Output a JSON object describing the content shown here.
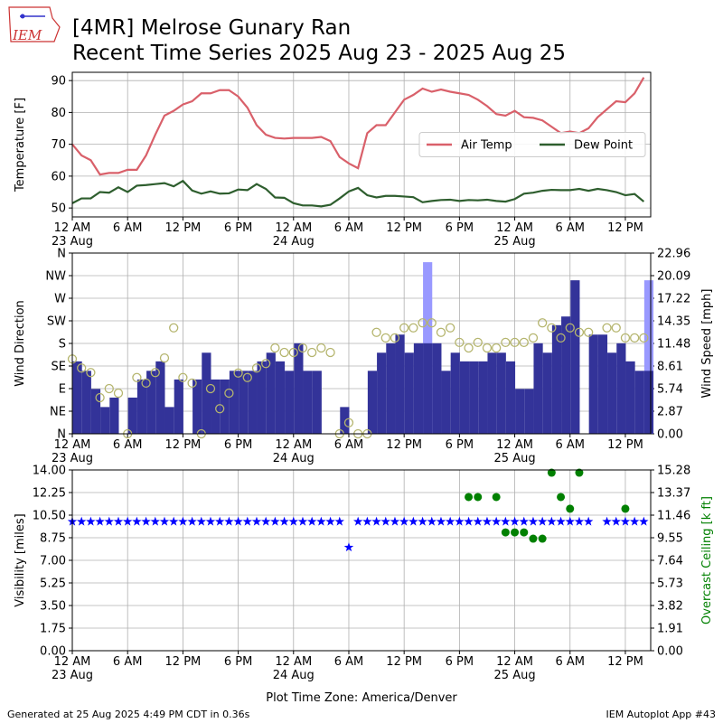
{
  "header": {
    "title": [
      "[4MR] Melrose Gunary Ran",
      "Recent Time Series 2025 Aug 23 - 2025 Aug 25"
    ],
    "logo": "IEM"
  },
  "footer": {
    "left": "Generated at 25 Aug 2025 4:49 PM CDT in 0.36s",
    "right": "IEM Autoplot App #43"
  },
  "chart_data": [
    {
      "type": "line",
      "ylabel": "Temperature [F]",
      "grid": true,
      "legend": "center right",
      "x": [
        "2025-08-23T00:00",
        "2025-08-23T01:00",
        "2025-08-23T02:00",
        "2025-08-23T03:00",
        "2025-08-23T04:00",
        "2025-08-23T05:00",
        "2025-08-23T06:00",
        "2025-08-23T07:00",
        "2025-08-23T08:00",
        "2025-08-23T09:00",
        "2025-08-23T10:00",
        "2025-08-23T11:00",
        "2025-08-23T12:00",
        "2025-08-23T13:00",
        "2025-08-23T14:00",
        "2025-08-23T15:00",
        "2025-08-23T16:00",
        "2025-08-23T17:00",
        "2025-08-23T18:00",
        "2025-08-23T19:00",
        "2025-08-23T20:00",
        "2025-08-23T21:00",
        "2025-08-23T22:00",
        "2025-08-23T23:00",
        "2025-08-24T00:00",
        "2025-08-24T01:00",
        "2025-08-24T02:00",
        "2025-08-24T03:00",
        "2025-08-24T04:00",
        "2025-08-24T05:00",
        "2025-08-24T06:00",
        "2025-08-24T07:00",
        "2025-08-24T08:00",
        "2025-08-24T09:00",
        "2025-08-24T10:00",
        "2025-08-24T11:00",
        "2025-08-24T12:00",
        "2025-08-24T13:00",
        "2025-08-24T14:00",
        "2025-08-24T15:00",
        "2025-08-24T16:00",
        "2025-08-24T17:00",
        "2025-08-24T18:00",
        "2025-08-24T19:00",
        "2025-08-24T20:00",
        "2025-08-24T21:00",
        "2025-08-24T22:00",
        "2025-08-24T23:00",
        "2025-08-25T00:00",
        "2025-08-25T01:00",
        "2025-08-25T02:00",
        "2025-08-25T03:00",
        "2025-08-25T04:00",
        "2025-08-25T05:00",
        "2025-08-25T06:00",
        "2025-08-25T07:00",
        "2025-08-25T08:00",
        "2025-08-25T09:00",
        "2025-08-25T10:00",
        "2025-08-25T11:00",
        "2025-08-25T12:00",
        "2025-08-25T13:00",
        "2025-08-25T14:00"
      ],
      "xlim": [
        "2025-08-23T00:00",
        "2025-08-25T14:45"
      ],
      "xticks": [
        {
          "value": "2025-08-23T00:00",
          "label": "12 AM",
          "date": "23 Aug"
        },
        {
          "value": "2025-08-23T06:00",
          "label": "6 AM"
        },
        {
          "value": "2025-08-23T12:00",
          "label": "12 PM"
        },
        {
          "value": "2025-08-23T18:00",
          "label": "6 PM"
        },
        {
          "value": "2025-08-24T00:00",
          "label": "12 AM",
          "date": "24 Aug"
        },
        {
          "value": "2025-08-24T06:00",
          "label": "6 AM"
        },
        {
          "value": "2025-08-24T12:00",
          "label": "12 PM"
        },
        {
          "value": "2025-08-24T18:00",
          "label": "6 PM"
        },
        {
          "value": "2025-08-25T00:00",
          "label": "12 AM",
          "date": "25 Aug"
        },
        {
          "value": "2025-08-25T06:00",
          "label": "6 AM"
        },
        {
          "value": "2025-08-25T12:00",
          "label": "12 PM"
        }
      ],
      "ylim": [
        47.2,
        92.6
      ],
      "yticks": [
        50,
        60,
        70,
        80,
        90
      ],
      "series": [
        {
          "name": "Air Temp",
          "color": "#d9606a",
          "mark": "line",
          "values": [
            70,
            66.5,
            65,
            60.5,
            61,
            61,
            62,
            62,
            66.5,
            73,
            79,
            80.5,
            82.5,
            83.5,
            86,
            86,
            87,
            87,
            85,
            81.5,
            76,
            73,
            72,
            71.8,
            72,
            72,
            72,
            72.3,
            71,
            66,
            64,
            62.5,
            73.5,
            76,
            76,
            80,
            84,
            85.5,
            87.5,
            86.5,
            87.2,
            86.5,
            86,
            85.5,
            84,
            82,
            79.5,
            79,
            80.5,
            78.5,
            78.3,
            77.5,
            75.5,
            73.5,
            74,
            73.5,
            75,
            78.5,
            81,
            83.5,
            83.2,
            86,
            91
          ]
        },
        {
          "name": "Dew Point",
          "color": "#2e5e2e",
          "mark": "line",
          "values": [
            51.5,
            53,
            53,
            55,
            54.8,
            56.5,
            55,
            57,
            57.2,
            57.5,
            57.8,
            56.8,
            58.5,
            55.5,
            54.5,
            55.2,
            54.5,
            54.6,
            55.8,
            55.6,
            57.5,
            56,
            53.3,
            53.2,
            51.5,
            50.8,
            50.8,
            50.5,
            51,
            53,
            55.2,
            56.3,
            54,
            53.3,
            53.8,
            53.8,
            53.6,
            53.4,
            51.8,
            52.2,
            52.5,
            52.6,
            52.2,
            52.5,
            52.4,
            52.6,
            52.2,
            52,
            52.8,
            54.5,
            54.8,
            55.4,
            55.7,
            55.6,
            55.6,
            56,
            55.4,
            56,
            55.6,
            55,
            54,
            54.4,
            52
          ]
        }
      ]
    },
    {
      "type": "bar",
      "ylabel": "Wind Direction",
      "y2label": "Wind Speed [mph]",
      "grid": true,
      "x": [
        "2025-08-23T00:00",
        "2025-08-23T01:00",
        "2025-08-23T02:00",
        "2025-08-23T03:00",
        "2025-08-23T04:00",
        "2025-08-23T05:00",
        "2025-08-23T06:00",
        "2025-08-23T07:00",
        "2025-08-23T08:00",
        "2025-08-23T09:00",
        "2025-08-23T10:00",
        "2025-08-23T11:00",
        "2025-08-23T12:00",
        "2025-08-23T13:00",
        "2025-08-23T14:00",
        "2025-08-23T15:00",
        "2025-08-23T16:00",
        "2025-08-23T17:00",
        "2025-08-23T18:00",
        "2025-08-23T19:00",
        "2025-08-23T20:00",
        "2025-08-23T21:00",
        "2025-08-23T22:00",
        "2025-08-23T23:00",
        "2025-08-24T00:00",
        "2025-08-24T01:00",
        "2025-08-24T02:00",
        "2025-08-24T03:00",
        "2025-08-24T04:00",
        "2025-08-24T05:00",
        "2025-08-24T06:00",
        "2025-08-24T07:00",
        "2025-08-24T08:00",
        "2025-08-24T09:00",
        "2025-08-24T10:00",
        "2025-08-24T11:00",
        "2025-08-24T12:00",
        "2025-08-24T13:00",
        "2025-08-24T14:00",
        "2025-08-24T15:00",
        "2025-08-24T16:00",
        "2025-08-24T17:00",
        "2025-08-24T18:00",
        "2025-08-24T19:00",
        "2025-08-24T20:00",
        "2025-08-24T21:00",
        "2025-08-24T22:00",
        "2025-08-24T23:00",
        "2025-08-25T00:00",
        "2025-08-25T01:00",
        "2025-08-25T02:00",
        "2025-08-25T03:00",
        "2025-08-25T04:00",
        "2025-08-25T05:00",
        "2025-08-25T06:00",
        "2025-08-25T07:00",
        "2025-08-25T08:00",
        "2025-08-25T09:00",
        "2025-08-25T10:00",
        "2025-08-25T11:00",
        "2025-08-25T12:00",
        "2025-08-25T13:00",
        "2025-08-25T14:00"
      ],
      "xlim": [
        "2025-08-23T00:00",
        "2025-08-25T14:45"
      ],
      "xticks": [
        {
          "value": "2025-08-23T00:00",
          "label": "12 AM",
          "date": "23 Aug"
        },
        {
          "value": "2025-08-23T06:00",
          "label": "6 AM"
        },
        {
          "value": "2025-08-23T12:00",
          "label": "12 PM"
        },
        {
          "value": "2025-08-23T18:00",
          "label": "6 PM"
        },
        {
          "value": "2025-08-24T00:00",
          "label": "12 AM",
          "date": "24 Aug"
        },
        {
          "value": "2025-08-24T06:00",
          "label": "6 AM"
        },
        {
          "value": "2025-08-24T12:00",
          "label": "12 PM"
        },
        {
          "value": "2025-08-24T18:00",
          "label": "6 PM"
        },
        {
          "value": "2025-08-25T00:00",
          "label": "12 AM",
          "date": "25 Aug"
        },
        {
          "value": "2025-08-25T06:00",
          "label": "6 AM"
        },
        {
          "value": "2025-08-25T12:00",
          "label": "12 PM"
        }
      ],
      "ylim": [
        0,
        360
      ],
      "yticks": [
        {
          "value": 0,
          "label": "N"
        },
        {
          "value": 45,
          "label": "NE"
        },
        {
          "value": 90,
          "label": "E"
        },
        {
          "value": 135,
          "label": "SE"
        },
        {
          "value": 180,
          "label": "S"
        },
        {
          "value": 225,
          "label": "SW"
        },
        {
          "value": 270,
          "label": "W"
        },
        {
          "value": 315,
          "label": "NW"
        },
        {
          "value": 360,
          "label": "N"
        }
      ],
      "y2lim": [
        0,
        22.96
      ],
      "y2ticks": [
        {
          "value": 0,
          "label": "0.00"
        },
        2.87,
        5.74,
        8.61,
        11.48,
        14.35,
        17.22,
        20.09,
        22.96
      ],
      "series": [
        {
          "color": "#9999ff",
          "mark": "bar",
          "axis": "y2",
          "values": [
            null,
            null,
            null,
            null,
            null,
            null,
            null,
            null,
            null,
            null,
            null,
            null,
            null,
            null,
            null,
            null,
            null,
            null,
            null,
            null,
            null,
            null,
            null,
            null,
            null,
            null,
            null,
            null,
            null,
            null,
            null,
            null,
            null,
            null,
            null,
            null,
            null,
            null,
            21.8,
            null,
            null,
            null,
            null,
            null,
            null,
            null,
            null,
            null,
            null,
            null,
            null,
            null,
            null,
            null,
            null,
            null,
            null,
            null,
            null,
            null,
            null,
            null,
            19.5
          ]
        },
        {
          "color": "#333399",
          "mark": "bar",
          "axis": "y2",
          "values": [
            9.2,
            8,
            5.7,
            3.4,
            4.6,
            0,
            4.6,
            6.9,
            8,
            9.2,
            3.4,
            6.9,
            0,
            6.9,
            10.3,
            6.9,
            6.9,
            8,
            8,
            8,
            9.2,
            10.3,
            9.2,
            8,
            11.5,
            8,
            8,
            0,
            0,
            3.4,
            0,
            0,
            8,
            10.3,
            11.5,
            12.6,
            10.3,
            11.5,
            11.5,
            11.5,
            8,
            10.3,
            9.2,
            9.2,
            9.2,
            10.3,
            10.3,
            9.2,
            5.7,
            5.7,
            11.5,
            10.3,
            13.8,
            14.9,
            19.5,
            0,
            12.6,
            12.6,
            10.3,
            11.5,
            9.2,
            8,
            8
          ]
        },
        {
          "color": "#b5b56e",
          "mark": "circle-open",
          "values": [
            149,
            131,
            122,
            72,
            90,
            81,
            0,
            112,
            101,
            122,
            151,
            211,
            112,
            101,
            0,
            90,
            50,
            81,
            121,
            112,
            131,
            140,
            171,
            162,
            162,
            171,
            162,
            171,
            162,
            0,
            22,
            0,
            0,
            202,
            191,
            191,
            211,
            211,
            221,
            221,
            202,
            211,
            182,
            171,
            182,
            171,
            171,
            182,
            182,
            182,
            191,
            221,
            211,
            191,
            211,
            202,
            202,
            null,
            211,
            211,
            191,
            191,
            191
          ]
        }
      ]
    },
    {
      "type": "scatter",
      "ylabel": "Visibility [miles]",
      "y2label": "Overcast Ceiling [k ft]",
      "y2label_color": "#008000",
      "xlabel": "Plot Time Zone: America/Denver",
      "grid": true,
      "x": [
        "2025-08-23T00:00",
        "2025-08-23T01:00",
        "2025-08-23T02:00",
        "2025-08-23T03:00",
        "2025-08-23T04:00",
        "2025-08-23T05:00",
        "2025-08-23T06:00",
        "2025-08-23T07:00",
        "2025-08-23T08:00",
        "2025-08-23T09:00",
        "2025-08-23T10:00",
        "2025-08-23T11:00",
        "2025-08-23T12:00",
        "2025-08-23T13:00",
        "2025-08-23T14:00",
        "2025-08-23T15:00",
        "2025-08-23T16:00",
        "2025-08-23T17:00",
        "2025-08-23T18:00",
        "2025-08-23T19:00",
        "2025-08-23T20:00",
        "2025-08-23T21:00",
        "2025-08-23T22:00",
        "2025-08-23T23:00",
        "2025-08-24T00:00",
        "2025-08-24T01:00",
        "2025-08-24T02:00",
        "2025-08-24T03:00",
        "2025-08-24T04:00",
        "2025-08-24T05:00",
        "2025-08-24T06:00",
        "2025-08-24T07:00",
        "2025-08-24T08:00",
        "2025-08-24T09:00",
        "2025-08-24T10:00",
        "2025-08-24T11:00",
        "2025-08-24T12:00",
        "2025-08-24T13:00",
        "2025-08-24T14:00",
        "2025-08-24T15:00",
        "2025-08-24T16:00",
        "2025-08-24T17:00",
        "2025-08-24T18:00",
        "2025-08-24T19:00",
        "2025-08-24T20:00",
        "2025-08-24T21:00",
        "2025-08-24T22:00",
        "2025-08-24T23:00",
        "2025-08-25T00:00",
        "2025-08-25T01:00",
        "2025-08-25T02:00",
        "2025-08-25T03:00",
        "2025-08-25T04:00",
        "2025-08-25T05:00",
        "2025-08-25T06:00",
        "2025-08-25T07:00",
        "2025-08-25T08:00",
        "2025-08-25T09:00",
        "2025-08-25T10:00",
        "2025-08-25T11:00",
        "2025-08-25T12:00",
        "2025-08-25T13:00",
        "2025-08-25T14:00"
      ],
      "xlim": [
        "2025-08-23T00:00",
        "2025-08-25T14:45"
      ],
      "xticks": [
        {
          "value": "2025-08-23T00:00",
          "label": "12 AM",
          "date": "23 Aug"
        },
        {
          "value": "2025-08-23T06:00",
          "label": "6 AM"
        },
        {
          "value": "2025-08-23T12:00",
          "label": "12 PM"
        },
        {
          "value": "2025-08-23T18:00",
          "label": "6 PM"
        },
        {
          "value": "2025-08-24T00:00",
          "label": "12 AM",
          "date": "24 Aug"
        },
        {
          "value": "2025-08-24T06:00",
          "label": "6 AM"
        },
        {
          "value": "2025-08-24T12:00",
          "label": "12 PM"
        },
        {
          "value": "2025-08-24T18:00",
          "label": "6 PM"
        },
        {
          "value": "2025-08-25T00:00",
          "label": "12 AM",
          "date": "25 Aug"
        },
        {
          "value": "2025-08-25T06:00",
          "label": "6 AM"
        },
        {
          "value": "2025-08-25T12:00",
          "label": "12 PM"
        }
      ],
      "ylim": [
        0,
        14
      ],
      "yticks": [
        {
          "value": 0,
          "label": "0.00"
        },
        1.75,
        {
          "value": 3.5,
          "label": "3.50"
        },
        5.25,
        {
          "value": 7,
          "label": "7.00"
        },
        8.75,
        {
          "value": 10.5,
          "label": "10.50"
        },
        12.25,
        {
          "value": 14,
          "label": "14.00"
        }
      ],
      "y2lim": [
        0,
        15.28
      ],
      "y2ticks": [
        {
          "value": 0,
          "label": "0.00"
        },
        1.91,
        3.82,
        5.73,
        7.64,
        9.55,
        11.46,
        13.37,
        15.28
      ],
      "series": [
        {
          "color": "#0000ff",
          "mark": "star",
          "values": [
            10,
            10,
            10,
            10,
            10,
            10,
            10,
            10,
            10,
            10,
            10,
            10,
            10,
            10,
            10,
            10,
            10,
            10,
            10,
            10,
            10,
            10,
            10,
            10,
            10,
            10,
            10,
            10,
            10,
            10,
            8,
            10,
            10,
            10,
            10,
            10,
            10,
            10,
            10,
            10,
            10,
            10,
            10,
            10,
            10,
            10,
            10,
            10,
            10,
            10,
            10,
            10,
            10,
            10,
            10,
            10,
            10,
            null,
            10,
            10,
            10,
            10,
            10
          ]
        },
        {
          "color": "#008000",
          "mark": "circle",
          "axis": "y2",
          "values": [
            null,
            null,
            null,
            null,
            null,
            null,
            null,
            null,
            null,
            null,
            null,
            null,
            null,
            null,
            null,
            null,
            null,
            null,
            null,
            null,
            null,
            null,
            null,
            null,
            null,
            null,
            null,
            null,
            null,
            null,
            null,
            null,
            null,
            null,
            null,
            null,
            null,
            null,
            null,
            null,
            null,
            null,
            null,
            12.99,
            12.99,
            null,
            12.99,
            10,
            10,
            10,
            9.47,
            9.47,
            15.05,
            12.99,
            12,
            15.05,
            null,
            null,
            null,
            null,
            12,
            null,
            null
          ]
        }
      ]
    }
  ]
}
